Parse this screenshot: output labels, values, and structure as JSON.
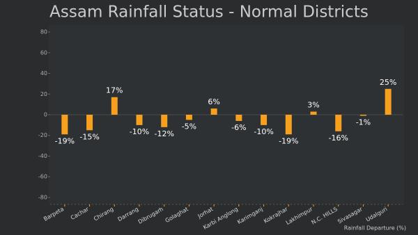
{
  "chart_data": {
    "type": "bar",
    "title": "Assam Rainfall Status - Normal Districts",
    "x_label": "Rainfall Departure (%)",
    "categories": [
      "Barpeta",
      "Cachar",
      "Chirang",
      "Darrang",
      "Dibrugarh",
      "Golaghat",
      "Jorhat",
      "Karbi Anglong",
      "Karimganj",
      "Kokrajhar",
      "Lakhimpur",
      "N.C. HILLS",
      "Sivasagar",
      "Udalguri"
    ],
    "values": [
      -19,
      -15,
      17,
      -10,
      -12,
      -5,
      6,
      -6,
      -10,
      -19,
      3,
      -16,
      -1,
      25
    ],
    "value_labels": [
      "-19%",
      "-15%",
      "17%",
      "-10%",
      "-12%",
      "-5%",
      "6%",
      "-6%",
      "-10%",
      "-19%",
      "3%",
      "-16%",
      "-1%",
      "25%"
    ],
    "color": "#f7a01e",
    "ylim": [
      -85,
      85
    ],
    "yticks": [
      -80,
      -60,
      -40,
      -20,
      0,
      20,
      40,
      60,
      80
    ],
    "grid": false
  }
}
